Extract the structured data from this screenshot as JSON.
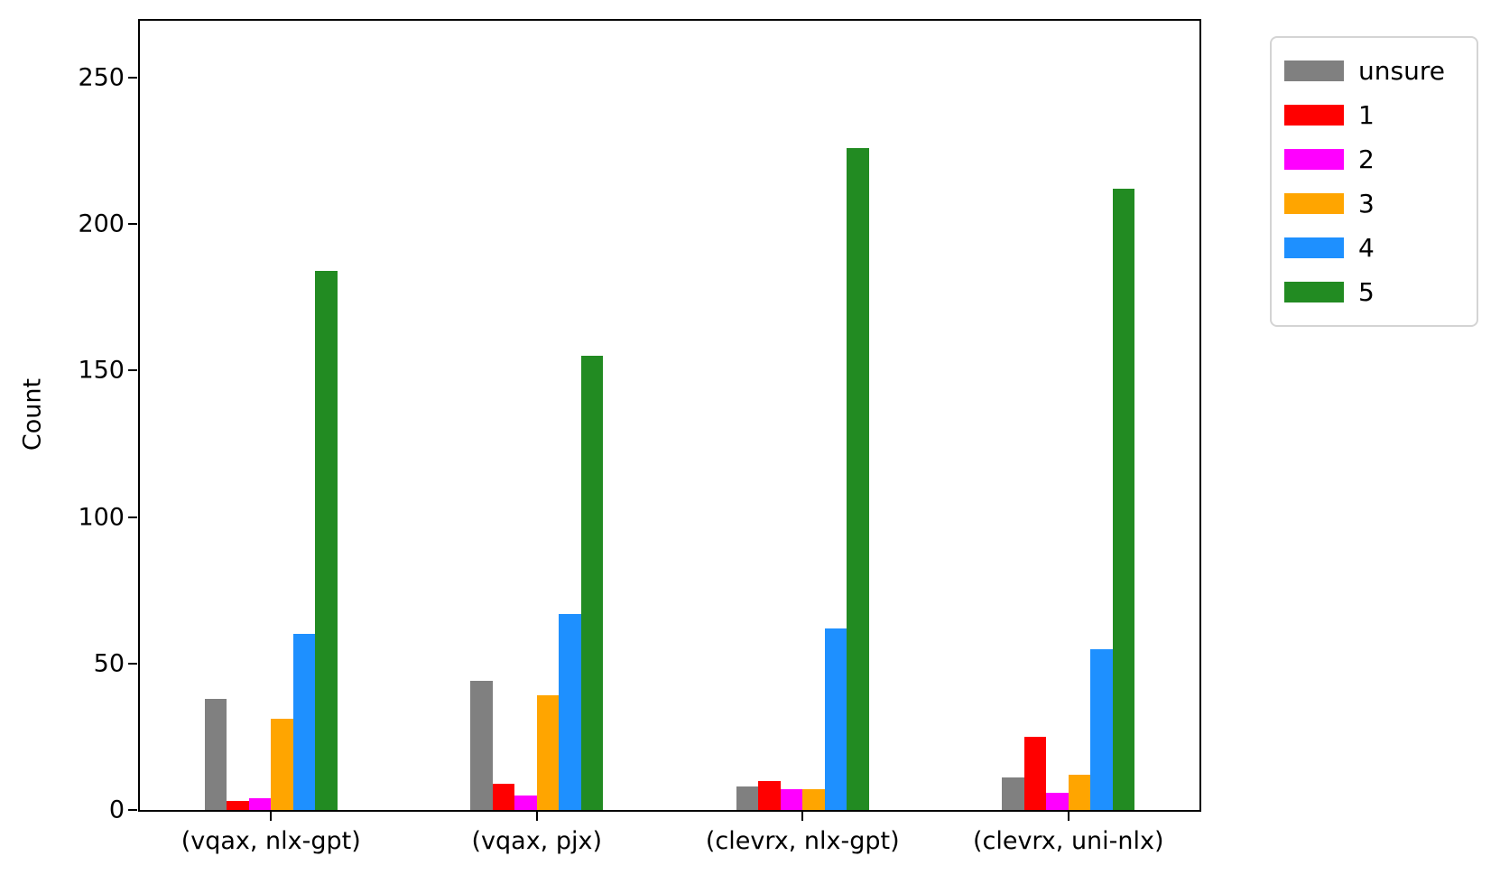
{
  "chart_data": {
    "type": "bar",
    "title": "",
    "xlabel": "",
    "ylabel": "Count",
    "ylim": [
      0,
      270
    ],
    "yticks": [
      0,
      50,
      100,
      150,
      200,
      250
    ],
    "grid": false,
    "legend_position": "outside-upper-right",
    "categories": [
      "(vqax, nlx-gpt)",
      "(vqax, pjx)",
      "(clevrx, nlx-gpt)",
      "(clevrx, uni-nlx)"
    ],
    "series": [
      {
        "name": "unsure",
        "color": "#808080",
        "values": [
          38,
          44,
          8,
          11
        ]
      },
      {
        "name": "1",
        "color": "#ff0000",
        "values": [
          3,
          9,
          10,
          25
        ]
      },
      {
        "name": "2",
        "color": "#ff00ff",
        "values": [
          4,
          5,
          7,
          6
        ]
      },
      {
        "name": "3",
        "color": "#ffa500",
        "values": [
          31,
          39,
          7,
          12
        ]
      },
      {
        "name": "4",
        "color": "#1e90ff",
        "values": [
          60,
          67,
          62,
          55
        ]
      },
      {
        "name": "5",
        "color": "#228b22",
        "values": [
          184,
          155,
          226,
          212
        ]
      }
    ]
  },
  "colors": {
    "axis": "#000000",
    "legend_border": "#d4d4d4",
    "background": "#ffffff"
  }
}
